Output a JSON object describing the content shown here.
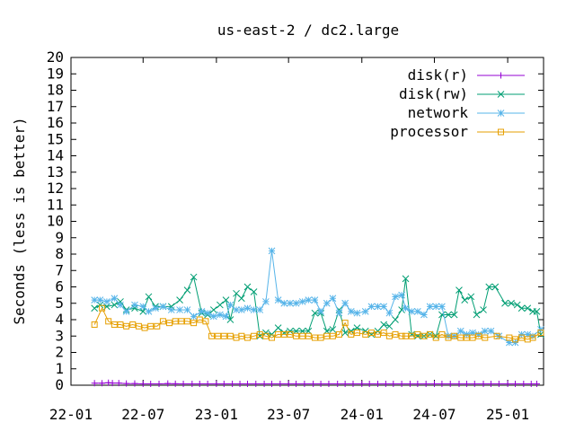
{
  "chart_data": {
    "type": "line",
    "title": "us-east-2 / dc2.large",
    "xlabel": "",
    "ylabel": "Seconds (less is better)",
    "ylim": [
      0,
      20
    ],
    "yticks": [
      "0",
      "1",
      "2",
      "3",
      "4",
      "5",
      "6",
      "7",
      "8",
      "9",
      "10",
      "11",
      "12",
      "13",
      "14",
      "15",
      "16",
      "17",
      "18",
      "19",
      "20"
    ],
    "xlim": [
      "2022-01-01",
      "2025-04-01"
    ],
    "xticks": [
      {
        "date": "2022-01-01",
        "label": "22-01"
      },
      {
        "date": "2022-07-01",
        "label": "22-07"
      },
      {
        "date": "2023-01-01",
        "label": "23-01"
      },
      {
        "date": "2023-07-01",
        "label": "23-07"
      },
      {
        "date": "2024-01-01",
        "label": "24-01"
      },
      {
        "date": "2024-07-01",
        "label": "24-07"
      },
      {
        "date": "2025-01-01",
        "label": "25-01"
      }
    ],
    "grid": false,
    "legend_position": "top-right",
    "series": [
      {
        "name": "disk(r)",
        "color": "#9400d3",
        "marker": "plus",
        "points": [
          [
            "2022-03-01",
            0.12
          ],
          [
            "2022-03-20",
            0.12
          ],
          [
            "2022-04-05",
            0.15
          ],
          [
            "2022-04-15",
            0.13
          ],
          [
            "2022-05-01",
            0.13
          ],
          [
            "2022-05-20",
            0.1
          ],
          [
            "2022-06-10",
            0.1
          ],
          [
            "2022-07-01",
            0.08
          ],
          [
            "2022-07-20",
            0.08
          ],
          [
            "2022-08-10",
            0.08
          ],
          [
            "2022-09-01",
            0.1
          ],
          [
            "2022-09-20",
            0.09
          ],
          [
            "2022-10-10",
            0.08
          ],
          [
            "2022-11-01",
            0.08
          ],
          [
            "2022-11-20",
            0.08
          ],
          [
            "2022-12-10",
            0.08
          ],
          [
            "2023-01-01",
            0.08
          ],
          [
            "2023-01-20",
            0.08
          ],
          [
            "2023-02-10",
            0.08
          ],
          [
            "2023-03-01",
            0.08
          ],
          [
            "2023-03-20",
            0.08
          ],
          [
            "2023-04-10",
            0.08
          ],
          [
            "2023-05-01",
            0.08
          ],
          [
            "2023-05-20",
            0.08
          ],
          [
            "2023-06-10",
            0.08
          ],
          [
            "2023-07-01",
            0.08
          ],
          [
            "2023-07-20",
            0.08
          ],
          [
            "2023-08-10",
            0.08
          ],
          [
            "2023-09-01",
            0.08
          ],
          [
            "2023-09-20",
            0.08
          ],
          [
            "2023-10-10",
            0.08
          ],
          [
            "2023-11-01",
            0.08
          ],
          [
            "2023-11-20",
            0.08
          ],
          [
            "2023-12-10",
            0.08
          ],
          [
            "2024-01-01",
            0.08
          ],
          [
            "2024-01-20",
            0.08
          ],
          [
            "2024-02-10",
            0.08
          ],
          [
            "2024-03-01",
            0.08
          ],
          [
            "2024-03-20",
            0.08
          ],
          [
            "2024-04-10",
            0.08
          ],
          [
            "2024-05-01",
            0.08
          ],
          [
            "2024-05-20",
            0.08
          ],
          [
            "2024-06-10",
            0.08
          ],
          [
            "2024-07-01",
            0.08
          ],
          [
            "2024-07-20",
            0.08
          ],
          [
            "2024-08-10",
            0.08
          ],
          [
            "2024-09-01",
            0.08
          ],
          [
            "2024-09-20",
            0.08
          ],
          [
            "2024-10-10",
            0.08
          ],
          [
            "2024-11-01",
            0.08
          ],
          [
            "2024-11-20",
            0.08
          ],
          [
            "2024-12-10",
            0.08
          ],
          [
            "2025-01-01",
            0.08
          ],
          [
            "2025-01-20",
            0.08
          ],
          [
            "2025-02-10",
            0.08
          ],
          [
            "2025-03-01",
            0.08
          ],
          [
            "2025-03-15",
            0.08
          ]
        ]
      },
      {
        "name": "disk(rw)",
        "color": "#009e73",
        "marker": "cross",
        "points": [
          [
            "2022-03-01",
            4.7
          ],
          [
            "2022-03-15",
            4.9
          ],
          [
            "2022-04-01",
            4.8
          ],
          [
            "2022-04-20",
            4.9
          ],
          [
            "2022-05-05",
            5.1
          ],
          [
            "2022-05-20",
            4.6
          ],
          [
            "2022-06-10",
            4.7
          ],
          [
            "2022-07-01",
            4.5
          ],
          [
            "2022-07-15",
            5.4
          ],
          [
            "2022-08-01",
            4.8
          ],
          [
            "2022-08-20",
            4.8
          ],
          [
            "2022-09-10",
            4.8
          ],
          [
            "2022-10-01",
            5.2
          ],
          [
            "2022-10-20",
            5.8
          ],
          [
            "2022-11-05",
            6.6
          ],
          [
            "2022-11-25",
            4.4
          ],
          [
            "2022-12-10",
            4.3
          ],
          [
            "2022-12-25",
            4.6
          ],
          [
            "2023-01-10",
            4.9
          ],
          [
            "2023-01-25",
            5.2
          ],
          [
            "2023-02-05",
            4.0
          ],
          [
            "2023-02-20",
            5.6
          ],
          [
            "2023-03-05",
            5.3
          ],
          [
            "2023-03-20",
            6.0
          ],
          [
            "2023-04-05",
            5.7
          ],
          [
            "2023-04-20",
            3.0
          ],
          [
            "2023-05-05",
            3.2
          ],
          [
            "2023-05-20",
            3.1
          ],
          [
            "2023-06-05",
            3.5
          ],
          [
            "2023-06-20",
            3.2
          ],
          [
            "2023-07-05",
            3.3
          ],
          [
            "2023-07-20",
            3.3
          ],
          [
            "2023-08-05",
            3.3
          ],
          [
            "2023-08-20",
            3.3
          ],
          [
            "2023-09-05",
            4.4
          ],
          [
            "2023-09-20",
            4.4
          ],
          [
            "2023-10-05",
            3.3
          ],
          [
            "2023-10-20",
            3.4
          ],
          [
            "2023-11-05",
            4.6
          ],
          [
            "2023-11-20",
            3.2
          ],
          [
            "2023-12-05",
            3.3
          ],
          [
            "2023-12-20",
            3.5
          ],
          [
            "2024-01-10",
            3.3
          ],
          [
            "2024-01-25",
            3.1
          ],
          [
            "2024-02-10",
            3.3
          ],
          [
            "2024-02-25",
            3.7
          ],
          [
            "2024-03-10",
            3.6
          ],
          [
            "2024-03-25",
            4.0
          ],
          [
            "2024-04-10",
            4.6
          ],
          [
            "2024-04-20",
            6.5
          ],
          [
            "2024-05-05",
            3.1
          ],
          [
            "2024-05-20",
            3.0
          ],
          [
            "2024-06-05",
            3.0
          ],
          [
            "2024-06-20",
            3.1
          ],
          [
            "2024-07-05",
            3.0
          ],
          [
            "2024-07-20",
            4.3
          ],
          [
            "2024-08-05",
            4.3
          ],
          [
            "2024-08-20",
            4.3
          ],
          [
            "2024-09-01",
            5.8
          ],
          [
            "2024-09-15",
            5.2
          ],
          [
            "2024-10-01",
            5.4
          ],
          [
            "2024-10-15",
            4.3
          ],
          [
            "2024-11-01",
            4.6
          ],
          [
            "2024-11-15",
            6.0
          ],
          [
            "2024-12-01",
            6.0
          ],
          [
            "2024-12-25",
            5.0
          ],
          [
            "2025-01-10",
            5.0
          ],
          [
            "2025-01-25",
            4.9
          ],
          [
            "2025-02-05",
            4.7
          ],
          [
            "2025-02-20",
            4.7
          ],
          [
            "2025-03-05",
            4.5
          ],
          [
            "2025-03-15",
            4.5
          ],
          [
            "2025-03-25",
            3.1
          ]
        ]
      },
      {
        "name": "network",
        "color": "#56b4e9",
        "marker": "star",
        "points": [
          [
            "2022-03-01",
            5.2
          ],
          [
            "2022-03-15",
            5.2
          ],
          [
            "2022-04-01",
            5.1
          ],
          [
            "2022-04-20",
            5.3
          ],
          [
            "2022-05-05",
            4.9
          ],
          [
            "2022-05-20",
            4.5
          ],
          [
            "2022-06-10",
            4.9
          ],
          [
            "2022-07-01",
            4.8
          ],
          [
            "2022-07-15",
            4.5
          ],
          [
            "2022-08-01",
            4.7
          ],
          [
            "2022-08-20",
            4.8
          ],
          [
            "2022-09-10",
            4.6
          ],
          [
            "2022-10-01",
            4.6
          ],
          [
            "2022-10-20",
            4.6
          ],
          [
            "2022-11-05",
            4.2
          ],
          [
            "2022-11-25",
            4.5
          ],
          [
            "2022-12-10",
            4.4
          ],
          [
            "2022-12-25",
            4.2
          ],
          [
            "2023-01-10",
            4.3
          ],
          [
            "2023-01-25",
            4.2
          ],
          [
            "2023-02-05",
            4.9
          ],
          [
            "2023-02-20",
            4.6
          ],
          [
            "2023-03-05",
            4.6
          ],
          [
            "2023-03-20",
            4.7
          ],
          [
            "2023-04-05",
            4.6
          ],
          [
            "2023-04-20",
            4.6
          ],
          [
            "2023-05-05",
            5.1
          ],
          [
            "2023-05-20",
            8.2
          ],
          [
            "2023-06-05",
            5.2
          ],
          [
            "2023-06-20",
            5.0
          ],
          [
            "2023-07-05",
            5.0
          ],
          [
            "2023-07-20",
            5.0
          ],
          [
            "2023-08-05",
            5.1
          ],
          [
            "2023-08-20",
            5.2
          ],
          [
            "2023-09-05",
            5.2
          ],
          [
            "2023-09-20",
            4.5
          ],
          [
            "2023-10-05",
            5.0
          ],
          [
            "2023-10-20",
            5.3
          ],
          [
            "2023-11-05",
            4.4
          ],
          [
            "2023-11-20",
            5.0
          ],
          [
            "2023-12-05",
            4.5
          ],
          [
            "2023-12-20",
            4.4
          ],
          [
            "2024-01-10",
            4.5
          ],
          [
            "2024-01-25",
            4.8
          ],
          [
            "2024-02-10",
            4.8
          ],
          [
            "2024-02-25",
            4.8
          ],
          [
            "2024-03-10",
            4.4
          ],
          [
            "2024-03-25",
            5.4
          ],
          [
            "2024-04-10",
            5.5
          ],
          [
            "2024-04-20",
            4.7
          ],
          [
            "2024-05-05",
            4.5
          ],
          [
            "2024-05-20",
            4.5
          ],
          [
            "2024-06-05",
            4.3
          ],
          [
            "2024-06-20",
            4.8
          ],
          [
            "2024-07-05",
            4.8
          ],
          [
            "2024-07-20",
            4.8
          ],
          [
            "2024-08-05",
            3.0
          ],
          [
            "2024-08-20",
            3.0
          ],
          [
            "2024-09-05",
            3.3
          ],
          [
            "2024-09-20",
            3.1
          ],
          [
            "2024-10-05",
            3.2
          ],
          [
            "2024-10-20",
            3.1
          ],
          [
            "2024-11-05",
            3.3
          ],
          [
            "2024-11-20",
            3.3
          ],
          [
            "2024-12-10",
            3.0
          ],
          [
            "2025-01-05",
            2.6
          ],
          [
            "2025-01-20",
            2.6
          ],
          [
            "2025-02-05",
            3.1
          ],
          [
            "2025-02-20",
            3.1
          ],
          [
            "2025-03-05",
            3.0
          ],
          [
            "2025-03-25",
            3.4
          ]
        ]
      },
      {
        "name": "processor",
        "color": "#e69f00",
        "marker": "square",
        "points": [
          [
            "2022-03-01",
            3.7
          ],
          [
            "2022-03-20",
            4.7
          ],
          [
            "2022-04-05",
            3.9
          ],
          [
            "2022-04-20",
            3.7
          ],
          [
            "2022-05-05",
            3.7
          ],
          [
            "2022-05-20",
            3.6
          ],
          [
            "2022-06-05",
            3.7
          ],
          [
            "2022-06-20",
            3.6
          ],
          [
            "2022-07-05",
            3.5
          ],
          [
            "2022-07-20",
            3.6
          ],
          [
            "2022-08-05",
            3.6
          ],
          [
            "2022-08-20",
            3.9
          ],
          [
            "2022-09-05",
            3.8
          ],
          [
            "2022-09-20",
            3.9
          ],
          [
            "2022-10-05",
            3.9
          ],
          [
            "2022-10-20",
            3.9
          ],
          [
            "2022-11-05",
            3.8
          ],
          [
            "2022-11-20",
            4.0
          ],
          [
            "2022-12-05",
            3.9
          ],
          [
            "2022-12-20",
            3.0
          ],
          [
            "2023-01-05",
            3.0
          ],
          [
            "2023-01-20",
            3.0
          ],
          [
            "2023-02-05",
            3.0
          ],
          [
            "2023-02-20",
            2.9
          ],
          [
            "2023-03-05",
            3.0
          ],
          [
            "2023-03-20",
            2.9
          ],
          [
            "2023-04-05",
            3.0
          ],
          [
            "2023-04-20",
            3.1
          ],
          [
            "2023-05-05",
            3.0
          ],
          [
            "2023-05-20",
            2.9
          ],
          [
            "2023-06-05",
            3.1
          ],
          [
            "2023-06-20",
            3.1
          ],
          [
            "2023-07-05",
            3.1
          ],
          [
            "2023-07-20",
            3.0
          ],
          [
            "2023-08-05",
            3.0
          ],
          [
            "2023-08-20",
            3.0
          ],
          [
            "2023-09-05",
            2.9
          ],
          [
            "2023-09-20",
            2.9
          ],
          [
            "2023-10-05",
            3.0
          ],
          [
            "2023-10-20",
            3.0
          ],
          [
            "2023-11-05",
            3.1
          ],
          [
            "2023-11-20",
            3.8
          ],
          [
            "2023-12-05",
            3.1
          ],
          [
            "2023-12-20",
            3.2
          ],
          [
            "2024-01-10",
            3.1
          ],
          [
            "2024-01-25",
            3.2
          ],
          [
            "2024-02-10",
            3.1
          ],
          [
            "2024-02-25",
            3.2
          ],
          [
            "2024-03-10",
            3.0
          ],
          [
            "2024-03-25",
            3.1
          ],
          [
            "2024-04-10",
            3.0
          ],
          [
            "2024-04-20",
            3.0
          ],
          [
            "2024-05-05",
            3.0
          ],
          [
            "2024-05-20",
            3.1
          ],
          [
            "2024-06-05",
            3.0
          ],
          [
            "2024-06-20",
            3.1
          ],
          [
            "2024-07-05",
            2.9
          ],
          [
            "2024-07-20",
            3.1
          ],
          [
            "2024-08-05",
            2.9
          ],
          [
            "2024-08-20",
            3.0
          ],
          [
            "2024-09-05",
            2.9
          ],
          [
            "2024-09-20",
            2.9
          ],
          [
            "2024-10-05",
            2.9
          ],
          [
            "2024-10-20",
            3.0
          ],
          [
            "2024-11-05",
            2.9
          ],
          [
            "2024-12-05",
            3.0
          ],
          [
            "2025-01-05",
            2.9
          ],
          [
            "2025-01-20",
            2.8
          ],
          [
            "2025-02-05",
            2.9
          ],
          [
            "2025-02-20",
            2.8
          ],
          [
            "2025-03-05",
            2.9
          ],
          [
            "2025-03-25",
            3.2
          ]
        ]
      }
    ]
  }
}
